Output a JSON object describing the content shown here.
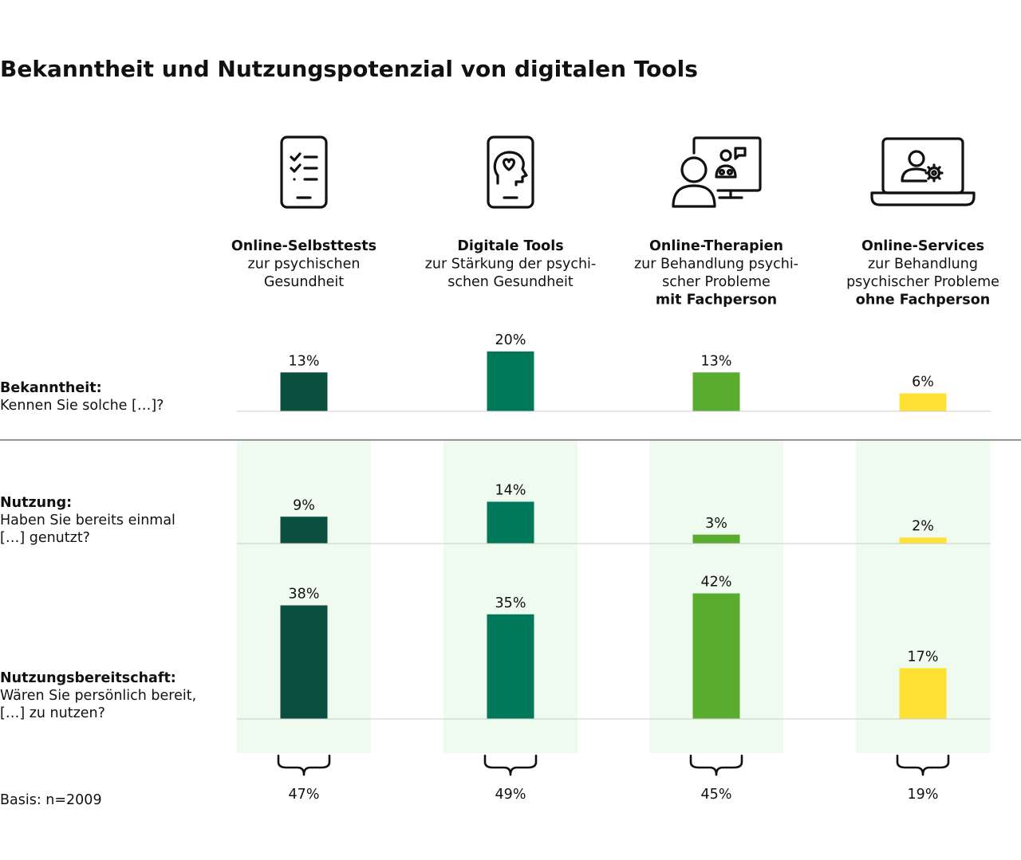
{
  "title": "Bekanntheit und Nutzungspotenzial von digitalen Tools",
  "basis": "Basis: n=2009",
  "categories": [
    {
      "icon": "checklist-phone-icon",
      "title": "Online-Selbsttests",
      "lines": [
        "zur psychischen",
        "Gesundheit"
      ],
      "bold_line": "",
      "total": "47%"
    },
    {
      "icon": "mind-heart-phone-icon",
      "title": "Digitale Tools",
      "lines": [
        "zur Stärkung der psychi-",
        "schen Gesundheit"
      ],
      "bold_line": "",
      "total": "49%"
    },
    {
      "icon": "video-therapy-icon",
      "title": "Online-Therapien",
      "lines": [
        "zur Behandlung psychi-",
        "scher Probleme"
      ],
      "bold_line": "mit Fachperson",
      "total": "45%"
    },
    {
      "icon": "laptop-user-gear-icon",
      "title": "Online-Services",
      "lines": [
        "zur Behandlung",
        "psychischer Probleme"
      ],
      "bold_line": "ohne Fachperson",
      "total": "19%"
    }
  ],
  "rows": [
    {
      "title": "Bekanntheit:",
      "question": [
        "Kennen Sie solche […]?"
      ]
    },
    {
      "title": "Nutzung:",
      "question": [
        "Haben Sie bereits einmal",
        "[…] genutzt?"
      ]
    },
    {
      "title": "Nutzungsbereitschaft:",
      "question": [
        "Wären Sie persönlich bereit,",
        "[…] zu nutzen?"
      ]
    }
  ],
  "colors": {
    "series": [
      "#0b4f3e",
      "#00785a",
      "#5aac2e",
      "#ffe135"
    ],
    "highlight": "#eefbee",
    "axis": "#cccccc",
    "divider": "#555555"
  },
  "chart_data": [
    {
      "type": "bar",
      "row": "Bekanntheit",
      "categories": [
        "Online-Selbsttests",
        "Digitale Tools",
        "Online-Therapien",
        "Online-Services"
      ],
      "values": [
        13,
        20,
        13,
        6
      ],
      "labels": [
        "13%",
        "20%",
        "13%",
        "6%"
      ]
    },
    {
      "type": "bar",
      "row": "Nutzung",
      "categories": [
        "Online-Selbsttests",
        "Digitale Tools",
        "Online-Therapien",
        "Online-Services"
      ],
      "values": [
        9,
        14,
        3,
        2
      ],
      "labels": [
        "9%",
        "14%",
        "3%",
        "2%"
      ]
    },
    {
      "type": "bar",
      "row": "Nutzungsbereitschaft",
      "categories": [
        "Online-Selbsttests",
        "Digitale Tools",
        "Online-Therapien",
        "Online-Services"
      ],
      "values": [
        38,
        35,
        42,
        17
      ],
      "labels": [
        "38%",
        "35%",
        "42%",
        "17%"
      ]
    }
  ]
}
